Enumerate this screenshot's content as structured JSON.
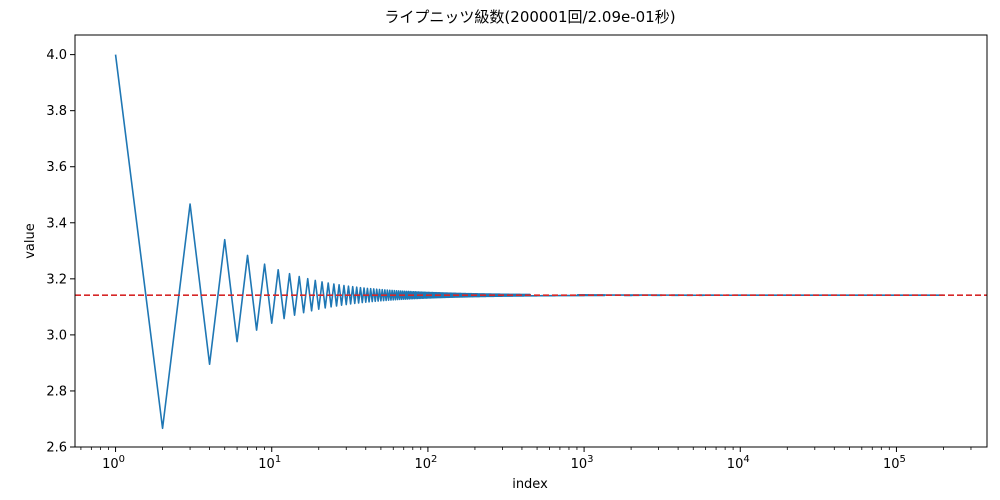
{
  "chart_data": {
    "type": "line",
    "title": "ライプニッツ級数(200001回/2.09e-01秒)",
    "xlabel": "index",
    "ylabel": "value",
    "x_scale": "log",
    "xlim": [
      0.55,
      380000
    ],
    "ylim": [
      2.6,
      4.07
    ],
    "y_ticks": [
      "2.6",
      "2.8",
      "3.0",
      "3.2",
      "3.4",
      "3.6",
      "3.8",
      "4.0"
    ],
    "x_ticks": [
      {
        "value": 1,
        "base": "10",
        "exp": "0"
      },
      {
        "value": 10,
        "base": "10",
        "exp": "1"
      },
      {
        "value": 100,
        "base": "10",
        "exp": "2"
      },
      {
        "value": 1000,
        "base": "10",
        "exp": "3"
      },
      {
        "value": 10000,
        "base": "10",
        "exp": "4"
      },
      {
        "value": 100000,
        "base": "10",
        "exp": "5"
      }
    ],
    "series": [
      {
        "color": "#1f77b4",
        "n_terms": 200001,
        "x": [
          1,
          2,
          3,
          4,
          5,
          6,
          7,
          8,
          9,
          10,
          11,
          12,
          13,
          14,
          15,
          16,
          17,
          18,
          19,
          20,
          30,
          50,
          100,
          200,
          500,
          1000,
          10000,
          200001
        ],
        "values": [
          4.0,
          2.667,
          3.467,
          2.895,
          3.34,
          2.976,
          3.284,
          3.017,
          3.252,
          3.042,
          3.232,
          3.058,
          3.218,
          3.07,
          3.208,
          3.079,
          3.2,
          3.086,
          3.194,
          3.092,
          3.108,
          3.122,
          3.132,
          3.137,
          3.14,
          3.141,
          3.1415,
          3.14159
        ]
      }
    ],
    "reference_line": {
      "y": 3.14159,
      "color": "#d62728",
      "style": "dashed"
    }
  }
}
